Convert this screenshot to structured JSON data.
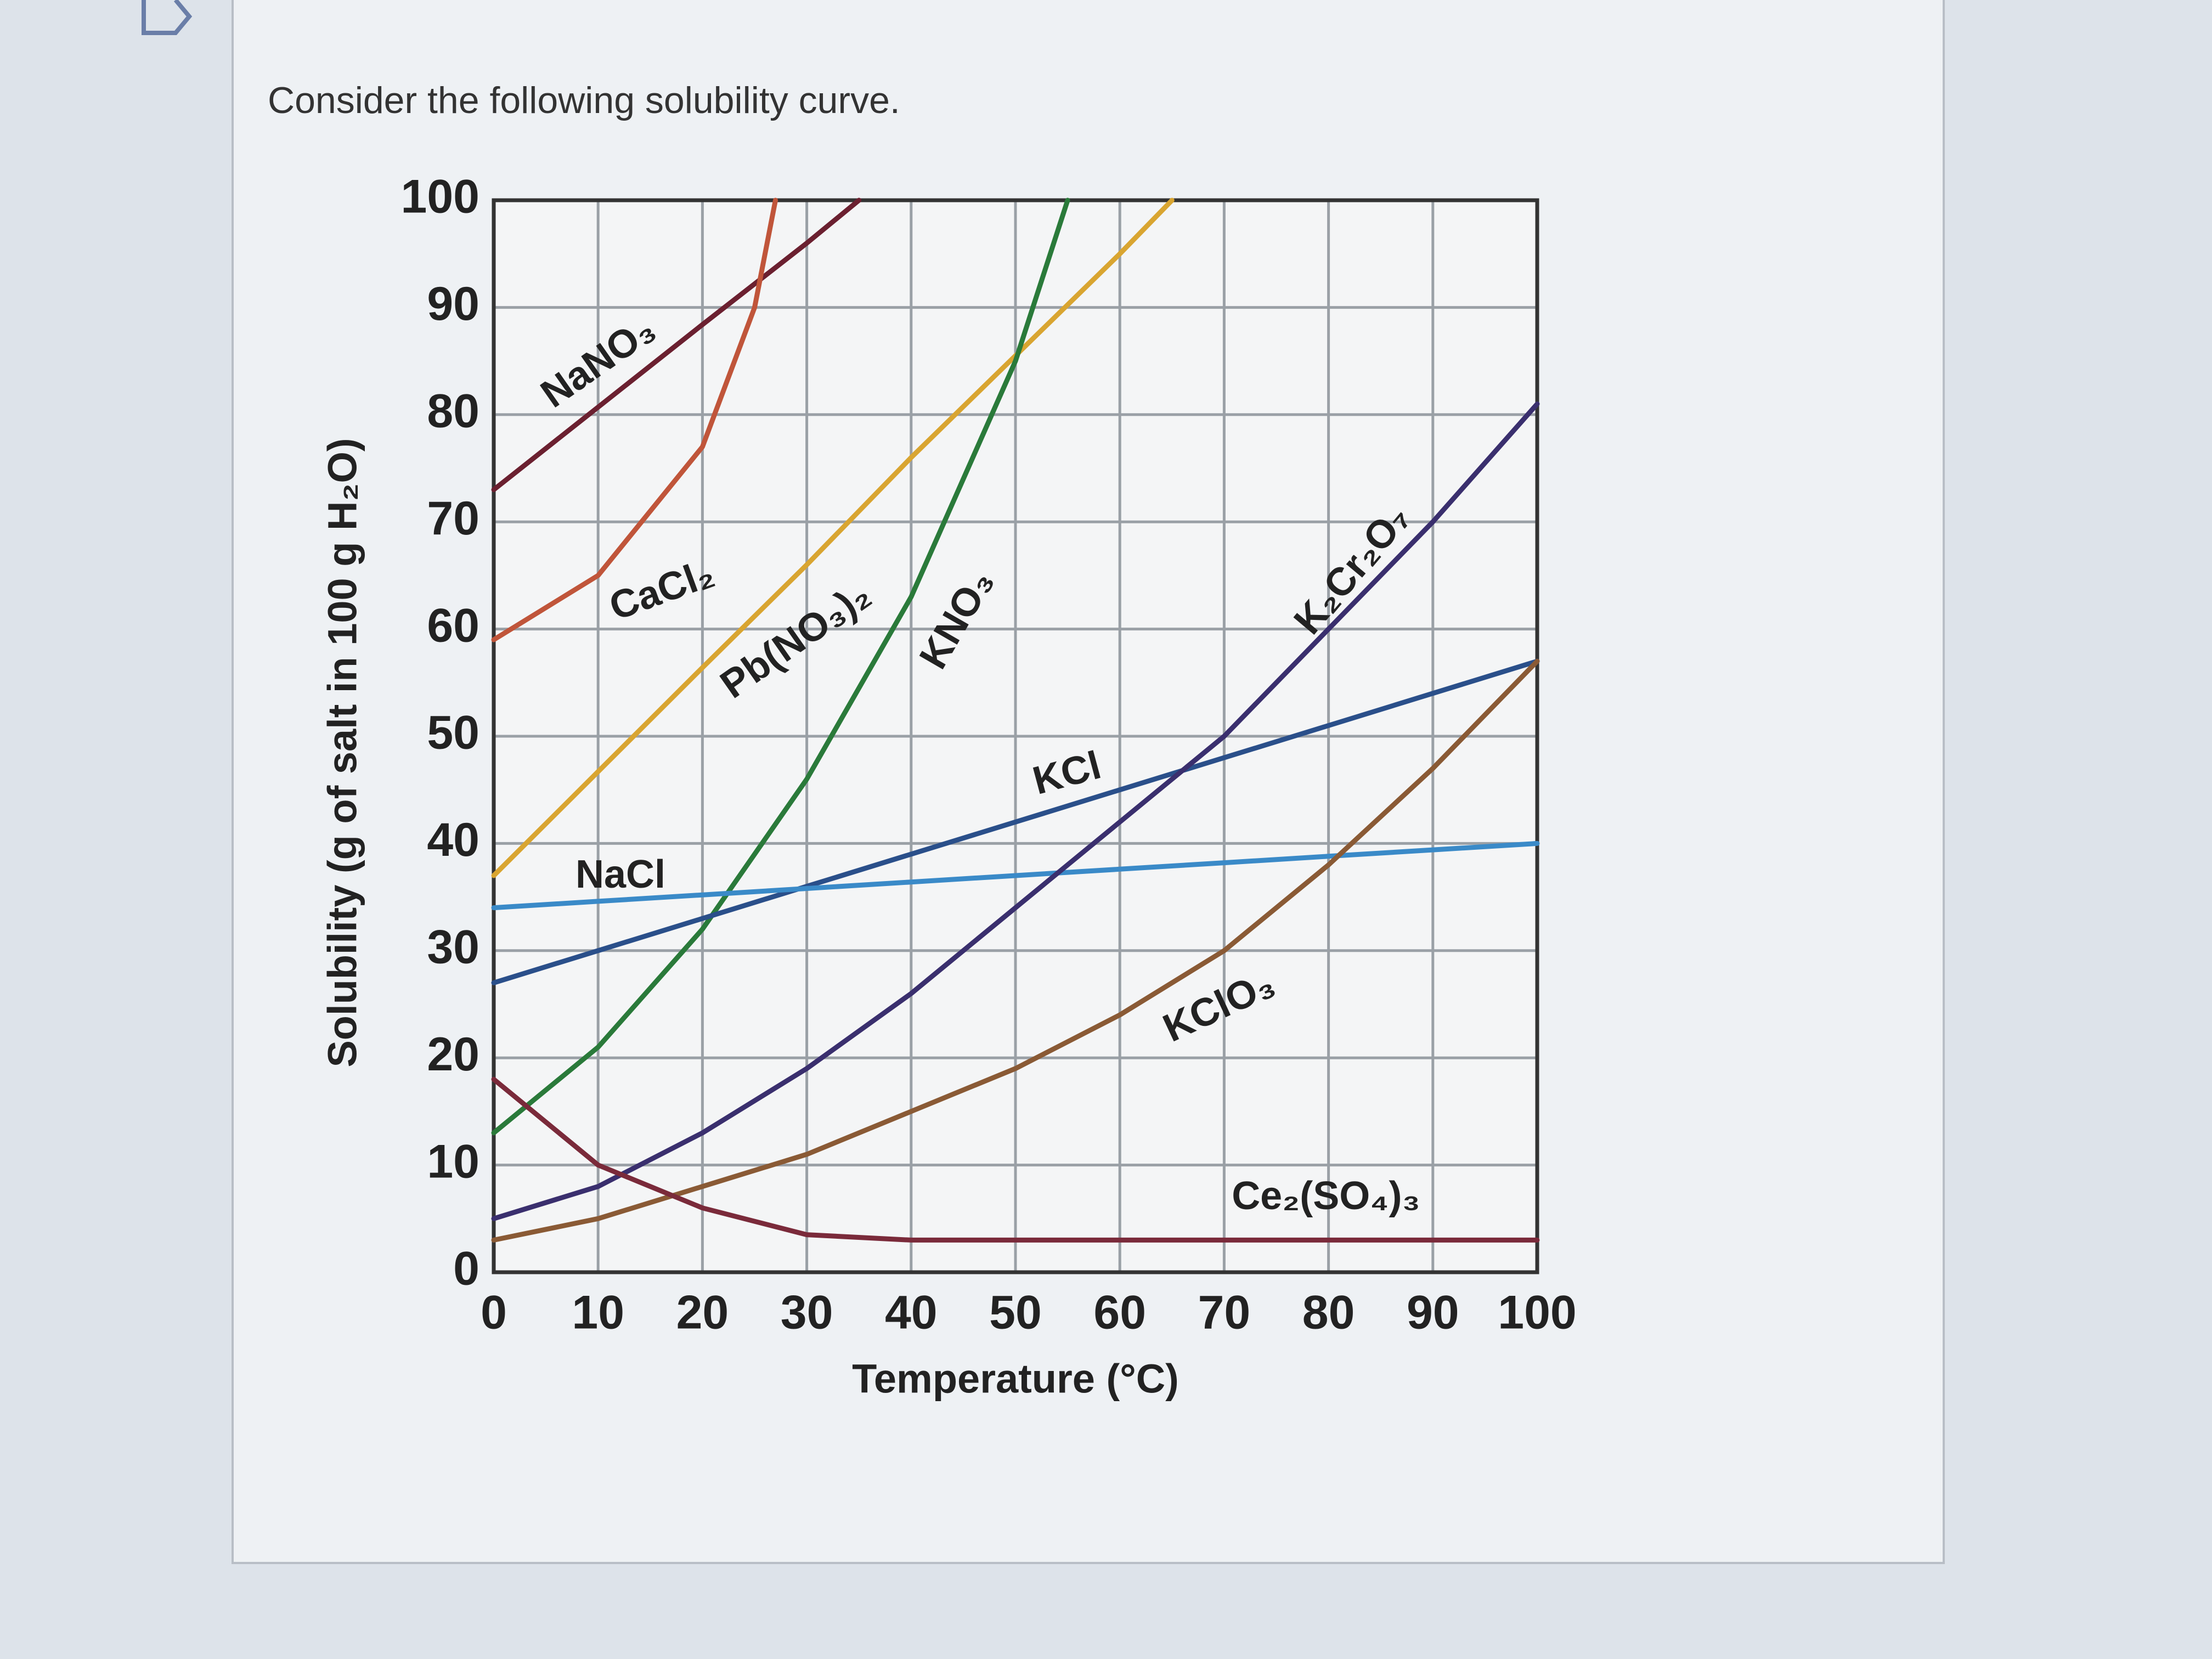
{
  "question": "Consider the following solubility curve.",
  "chart_data": {
    "type": "line",
    "x_label": "Temperature (°C)",
    "y_label": "Solubility (g of salt in 100 g H₂O)",
    "xlim": [
      0,
      100
    ],
    "ylim": [
      0,
      100
    ],
    "xticks": [
      0,
      10,
      20,
      30,
      40,
      50,
      60,
      70,
      80,
      90,
      100
    ],
    "yticks": [
      0,
      10,
      20,
      30,
      40,
      50,
      60,
      70,
      80,
      90,
      100
    ],
    "grid": true,
    "series": [
      {
        "name": "NaNO₃",
        "color": "#6b2030",
        "x": [
          0,
          10,
          20,
          30,
          35
        ],
        "values": [
          73,
          80.7,
          88.4,
          96,
          100
        ]
      },
      {
        "name": "CaCl₂",
        "color": "#c0553a",
        "x": [
          0,
          10,
          20,
          25,
          27
        ],
        "values": [
          59,
          65,
          77,
          90,
          100
        ]
      },
      {
        "name": "Pb(NO₃)₂",
        "color": "#d9a531",
        "x": [
          0,
          10,
          20,
          30,
          40,
          50,
          60,
          65
        ],
        "values": [
          37,
          46.7,
          56.4,
          66,
          76,
          85.5,
          95,
          100
        ]
      },
      {
        "name": "KNO₃",
        "color": "#2a7a3a",
        "x": [
          0,
          10,
          20,
          30,
          40,
          50,
          55
        ],
        "values": [
          13,
          21,
          32,
          46,
          63,
          85,
          100
        ]
      },
      {
        "name": "KCl",
        "color": "#2a4f8a",
        "x": [
          0,
          10,
          20,
          30,
          40,
          50,
          60,
          70,
          80,
          90,
          100
        ],
        "values": [
          27,
          30,
          33,
          36,
          39,
          42,
          45,
          48,
          51,
          54,
          57
        ]
      },
      {
        "name": "NaCl",
        "color": "#3a8ac8",
        "x": [
          0,
          10,
          20,
          30,
          40,
          50,
          60,
          70,
          80,
          90,
          100
        ],
        "values": [
          34,
          34.6,
          35.2,
          35.8,
          36.4,
          37,
          37.6,
          38.2,
          38.8,
          39.4,
          40
        ]
      },
      {
        "name": "K₂Cr₂O₇",
        "color": "#3a2f6e",
        "x": [
          0,
          10,
          20,
          30,
          40,
          50,
          60,
          70,
          80,
          90,
          100
        ],
        "values": [
          5,
          8,
          13,
          19,
          26,
          34,
          42,
          50,
          60,
          70,
          81
        ]
      },
      {
        "name": "KClO₃",
        "color": "#8a5a35",
        "x": [
          0,
          10,
          20,
          30,
          40,
          50,
          60,
          70,
          80,
          90,
          100
        ],
        "values": [
          3,
          5,
          8,
          11,
          15,
          19,
          24,
          30,
          38,
          47,
          57
        ]
      },
      {
        "name": "Ce₂(SO₄)₃",
        "color": "#7a2a3a",
        "x": [
          0,
          10,
          20,
          30,
          40,
          50,
          60,
          70,
          80,
          90,
          100
        ],
        "values": [
          18,
          10,
          6,
          3.5,
          3,
          3,
          3,
          3,
          3,
          3,
          3
        ]
      }
    ]
  }
}
